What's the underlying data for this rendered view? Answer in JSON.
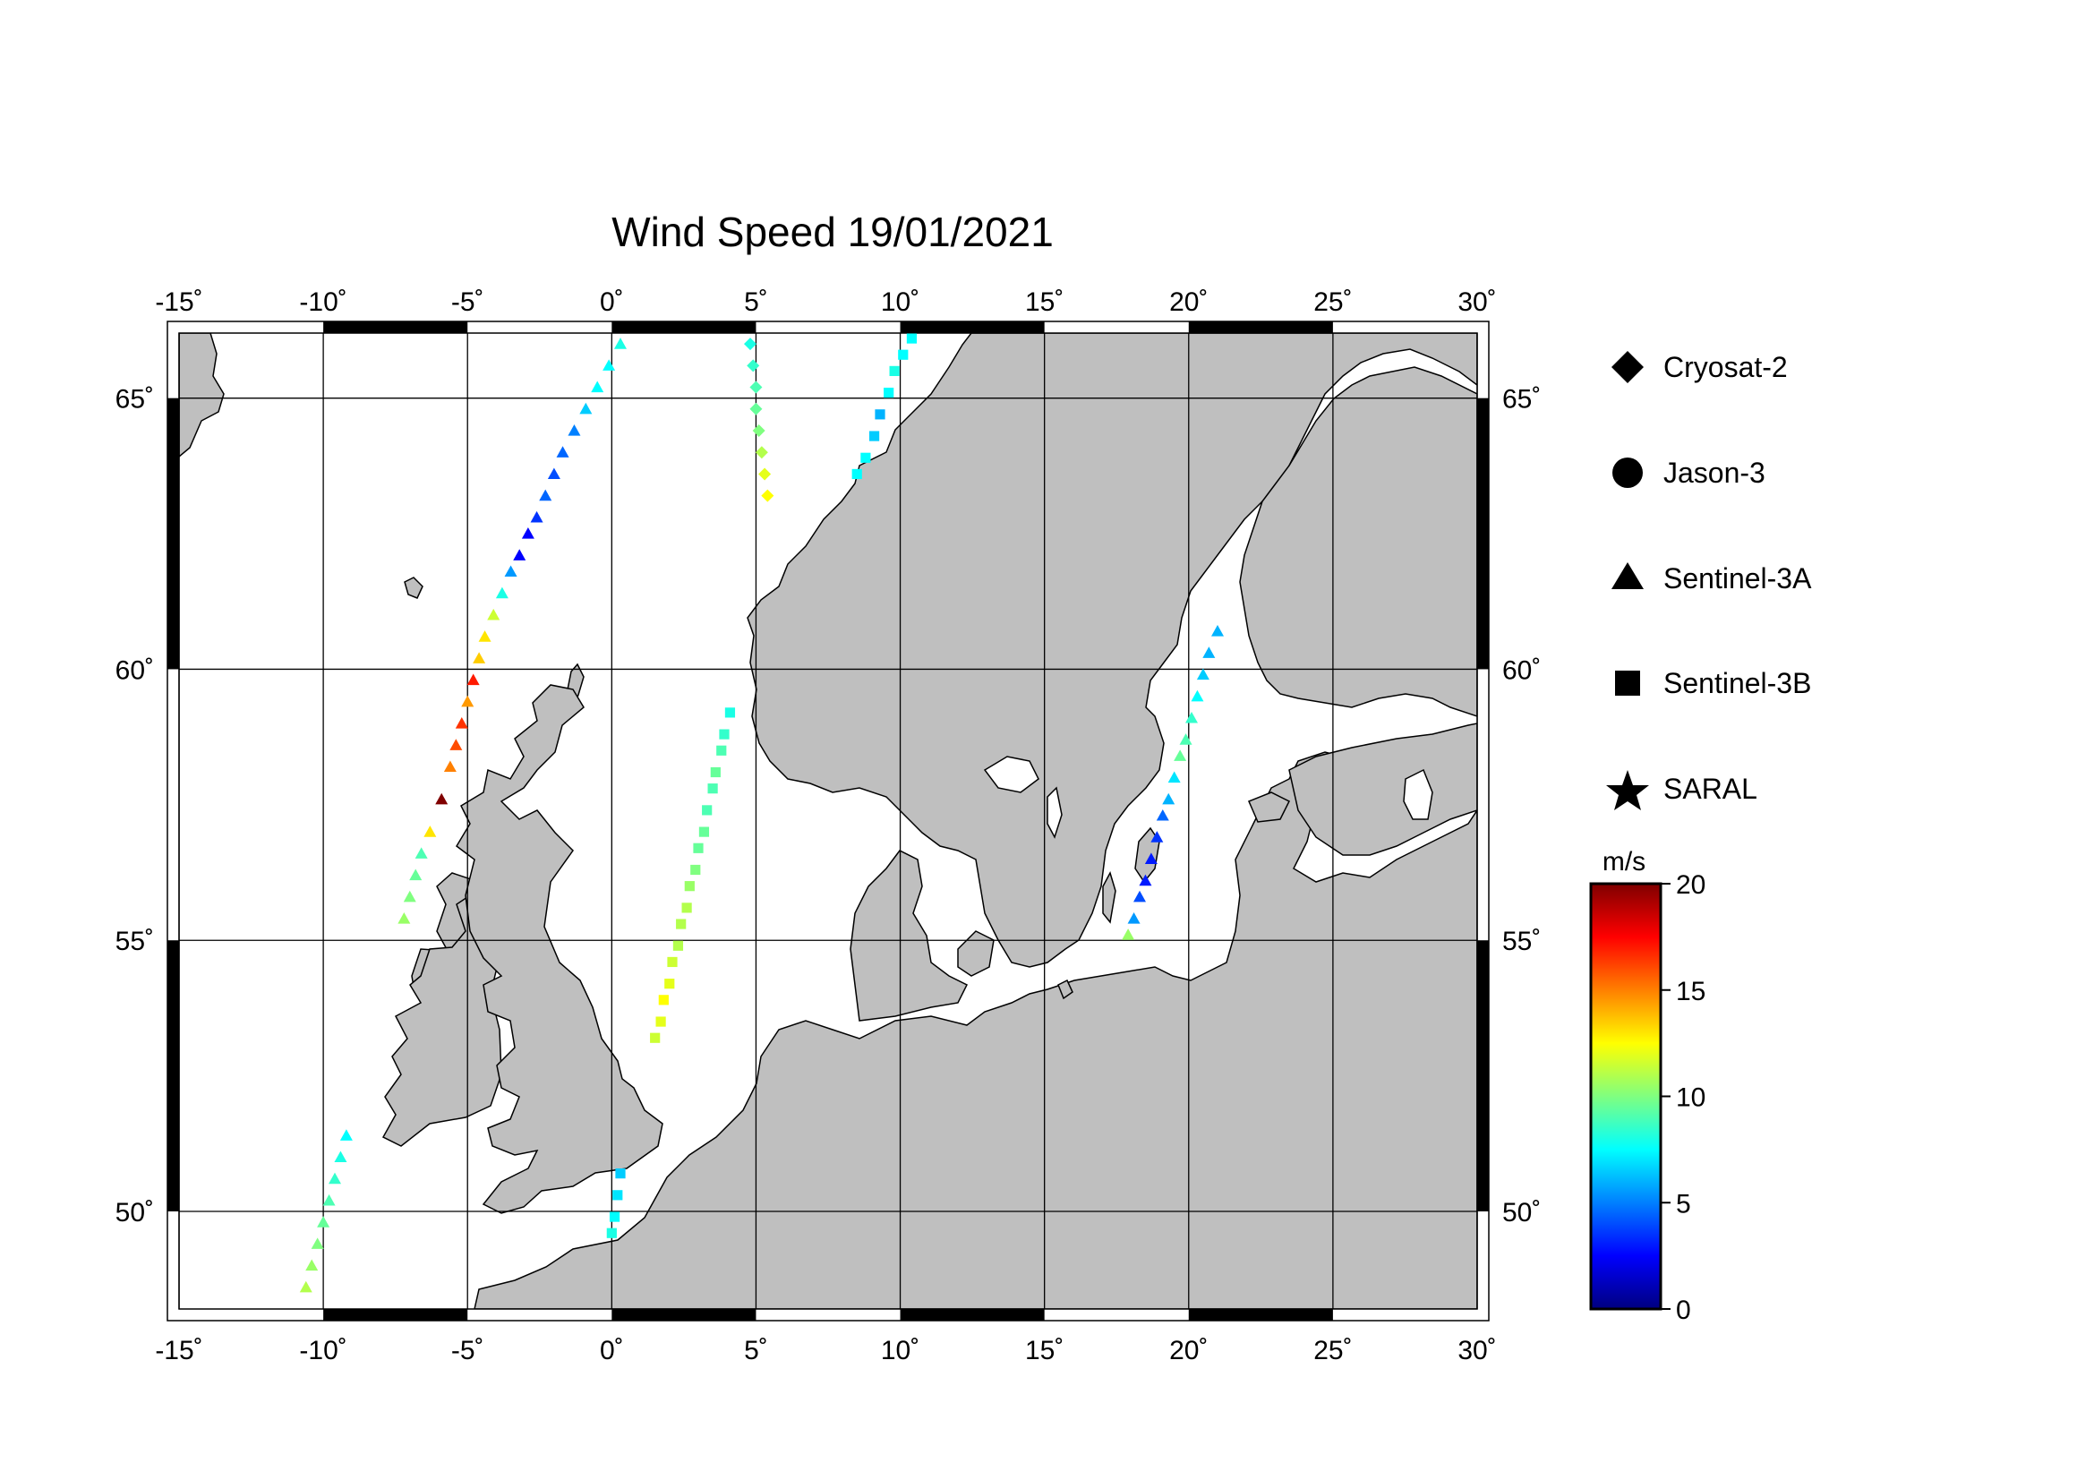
{
  "title": "Wind Speed 19/01/2021",
  "map": {
    "lon_range": [
      -15,
      30
    ],
    "lat_range": [
      48.2,
      66.2
    ],
    "lon_ticks": [
      -15,
      -10,
      -5,
      0,
      5,
      10,
      15,
      20,
      25,
      30
    ],
    "lat_ticks": [
      50,
      55,
      60,
      65
    ],
    "lon_labels": [
      "-15˚",
      "-10˚",
      "-5˚",
      "0˚",
      "5˚",
      "10˚",
      "15˚",
      "20˚",
      "25˚",
      "30˚"
    ],
    "lat_labels": [
      "50˚",
      "55˚",
      "60˚",
      "65˚"
    ],
    "land_color": "#bfbfbf",
    "sea_color": "#ffffff",
    "gridlines": true
  },
  "legend": [
    {
      "label": "Cryosat-2",
      "icon": "diamond-icon"
    },
    {
      "label": "Jason-3",
      "icon": "circle-icon"
    },
    {
      "label": "Sentinel-3A",
      "icon": "triangle-icon"
    },
    {
      "label": "Sentinel-3B",
      "icon": "square-icon"
    },
    {
      "label": "SARAL",
      "icon": "star-icon"
    }
  ],
  "colorbar": {
    "unit": "m/s",
    "min": 0,
    "max": 20,
    "ticks": [
      0,
      5,
      10,
      15,
      20
    ],
    "tick_labels": [
      "0",
      "5",
      "10",
      "15",
      "20"
    ],
    "colormap": "jet"
  },
  "chart_data": {
    "type": "scatter",
    "x_label": "longitude",
    "y_label": "latitude",
    "series": [
      {
        "name": "Sentinel-3A",
        "marker": "triangle",
        "points": [
          [
            -10.6,
            48.6,
            11.0
          ],
          [
            -10.4,
            49.0,
            10.5
          ],
          [
            -10.2,
            49.4,
            10.0
          ],
          [
            -10.0,
            49.8,
            9.5
          ],
          [
            -9.8,
            50.2,
            9.0
          ],
          [
            -9.6,
            50.6,
            8.5
          ],
          [
            -9.4,
            51.0,
            8.0
          ],
          [
            -9.2,
            51.4,
            7.5
          ],
          [
            -7.2,
            55.4,
            10.5
          ],
          [
            -7.0,
            55.8,
            10.0
          ],
          [
            -6.8,
            56.2,
            9.5
          ],
          [
            -6.6,
            56.6,
            9.0
          ],
          [
            -6.3,
            57.0,
            13.0
          ],
          [
            -5.9,
            57.6,
            20.0
          ],
          [
            -5.6,
            58.2,
            15.0
          ],
          [
            -5.4,
            58.6,
            16.0
          ],
          [
            -5.2,
            59.0,
            16.5
          ],
          [
            -5.0,
            59.4,
            14.5
          ],
          [
            -4.8,
            59.8,
            17.0
          ],
          [
            -4.6,
            60.2,
            13.5
          ],
          [
            -4.4,
            60.6,
            13.0
          ],
          [
            -4.1,
            61.0,
            11.5
          ],
          [
            -3.8,
            61.4,
            8.0
          ],
          [
            -3.5,
            61.8,
            5.5
          ],
          [
            -3.2,
            62.1,
            2.5
          ],
          [
            -2.9,
            62.5,
            2.5
          ],
          [
            -2.6,
            62.8,
            3.5
          ],
          [
            -2.3,
            63.2,
            4.5
          ],
          [
            -2.0,
            63.6,
            4.0
          ],
          [
            -1.7,
            64.0,
            4.5
          ],
          [
            -1.3,
            64.4,
            5.0
          ],
          [
            -0.9,
            64.8,
            6.5
          ],
          [
            -0.5,
            65.2,
            7.5
          ],
          [
            -0.1,
            65.6,
            7.5
          ],
          [
            0.3,
            66.0,
            8.0
          ],
          [
            17.9,
            55.1,
            10.5
          ],
          [
            18.1,
            55.4,
            5.5
          ],
          [
            18.3,
            55.8,
            4.0
          ],
          [
            18.5,
            56.1,
            3.0
          ],
          [
            18.7,
            56.5,
            3.0
          ],
          [
            18.9,
            56.9,
            3.5
          ],
          [
            19.1,
            57.3,
            4.5
          ],
          [
            19.3,
            57.6,
            6.0
          ],
          [
            19.5,
            58.0,
            7.0
          ],
          [
            19.7,
            58.4,
            9.5
          ],
          [
            19.9,
            58.7,
            9.0
          ],
          [
            20.1,
            59.1,
            8.5
          ],
          [
            20.3,
            59.5,
            7.5
          ],
          [
            20.5,
            59.9,
            6.5
          ],
          [
            20.7,
            60.3,
            6.0
          ],
          [
            21.0,
            60.7,
            6.0
          ]
        ]
      },
      {
        "name": "Sentinel-3B",
        "marker": "square",
        "points": [
          [
            0.0,
            49.6,
            8.0
          ],
          [
            0.1,
            49.9,
            7.5
          ],
          [
            0.2,
            50.3,
            7.0
          ],
          [
            0.3,
            50.7,
            6.5
          ],
          [
            1.5,
            53.2,
            11.5
          ],
          [
            1.7,
            53.5,
            12.0
          ],
          [
            1.8,
            53.9,
            12.5
          ],
          [
            2.0,
            54.2,
            12.0
          ],
          [
            2.1,
            54.6,
            11.5
          ],
          [
            2.3,
            54.9,
            11.0
          ],
          [
            2.4,
            55.3,
            11.0
          ],
          [
            2.6,
            55.6,
            11.0
          ],
          [
            2.7,
            56.0,
            10.5
          ],
          [
            2.9,
            56.3,
            10.0
          ],
          [
            3.0,
            56.7,
            9.5
          ],
          [
            3.2,
            57.0,
            9.5
          ],
          [
            3.3,
            57.4,
            9.0
          ],
          [
            3.5,
            57.8,
            9.0
          ],
          [
            3.6,
            58.1,
            9.5
          ],
          [
            3.8,
            58.5,
            9.0
          ],
          [
            3.9,
            58.8,
            8.5
          ],
          [
            4.1,
            59.2,
            8.0
          ],
          [
            8.5,
            63.6,
            7.5
          ],
          [
            8.8,
            63.9,
            7.5
          ],
          [
            9.1,
            64.3,
            6.5
          ],
          [
            9.3,
            64.7,
            6.0
          ],
          [
            9.6,
            65.1,
            7.5
          ],
          [
            9.8,
            65.5,
            8.0
          ],
          [
            10.1,
            65.8,
            7.5
          ],
          [
            10.4,
            66.1,
            7.5
          ]
        ]
      },
      {
        "name": "Cryosat-2",
        "marker": "diamond",
        "points": [
          [
            4.8,
            66.0,
            8.0
          ],
          [
            4.9,
            65.6,
            8.5
          ],
          [
            5.0,
            65.2,
            9.0
          ],
          [
            5.0,
            64.8,
            9.5
          ],
          [
            5.1,
            64.4,
            10.0
          ],
          [
            5.2,
            64.0,
            11.0
          ],
          [
            5.3,
            63.6,
            12.0
          ],
          [
            5.4,
            63.2,
            12.5
          ]
        ]
      }
    ]
  }
}
